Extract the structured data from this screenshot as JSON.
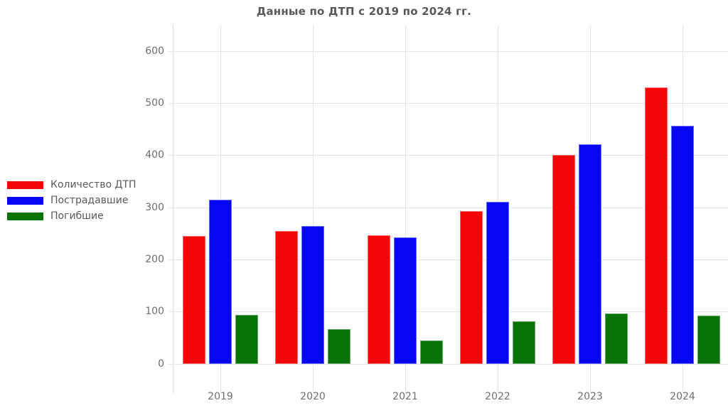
{
  "chart_data": {
    "type": "bar",
    "title": "Данные по ДТП с 2019 по 2024 гг.",
    "categories": [
      "2019",
      "2020",
      "2021",
      "2022",
      "2023",
      "2024"
    ],
    "series": [
      {
        "name": "Количество ДТП",
        "color": "#f50606",
        "values": [
          245,
          255,
          247,
          293,
          400,
          530
        ]
      },
      {
        "name": "Пострадавшие",
        "color": "#0606f5",
        "values": [
          314,
          264,
          243,
          310,
          421,
          456
        ]
      },
      {
        "name": "Погибшие",
        "color": "#077307",
        "values": [
          94,
          66,
          45,
          81,
          96,
          92
        ]
      }
    ],
    "yticks": [
      0,
      100,
      200,
      300,
      400,
      500,
      600
    ],
    "ylim": [
      0,
      600
    ],
    "xlabel": "",
    "ylabel": "",
    "grid": true,
    "legend_position": "left",
    "colors": {
      "grid": "#e4e4e4",
      "axis_spine": "#dddddd",
      "tick_text": "#6e6e6e",
      "title_text": "#595959",
      "background": "#ffffff"
    }
  }
}
